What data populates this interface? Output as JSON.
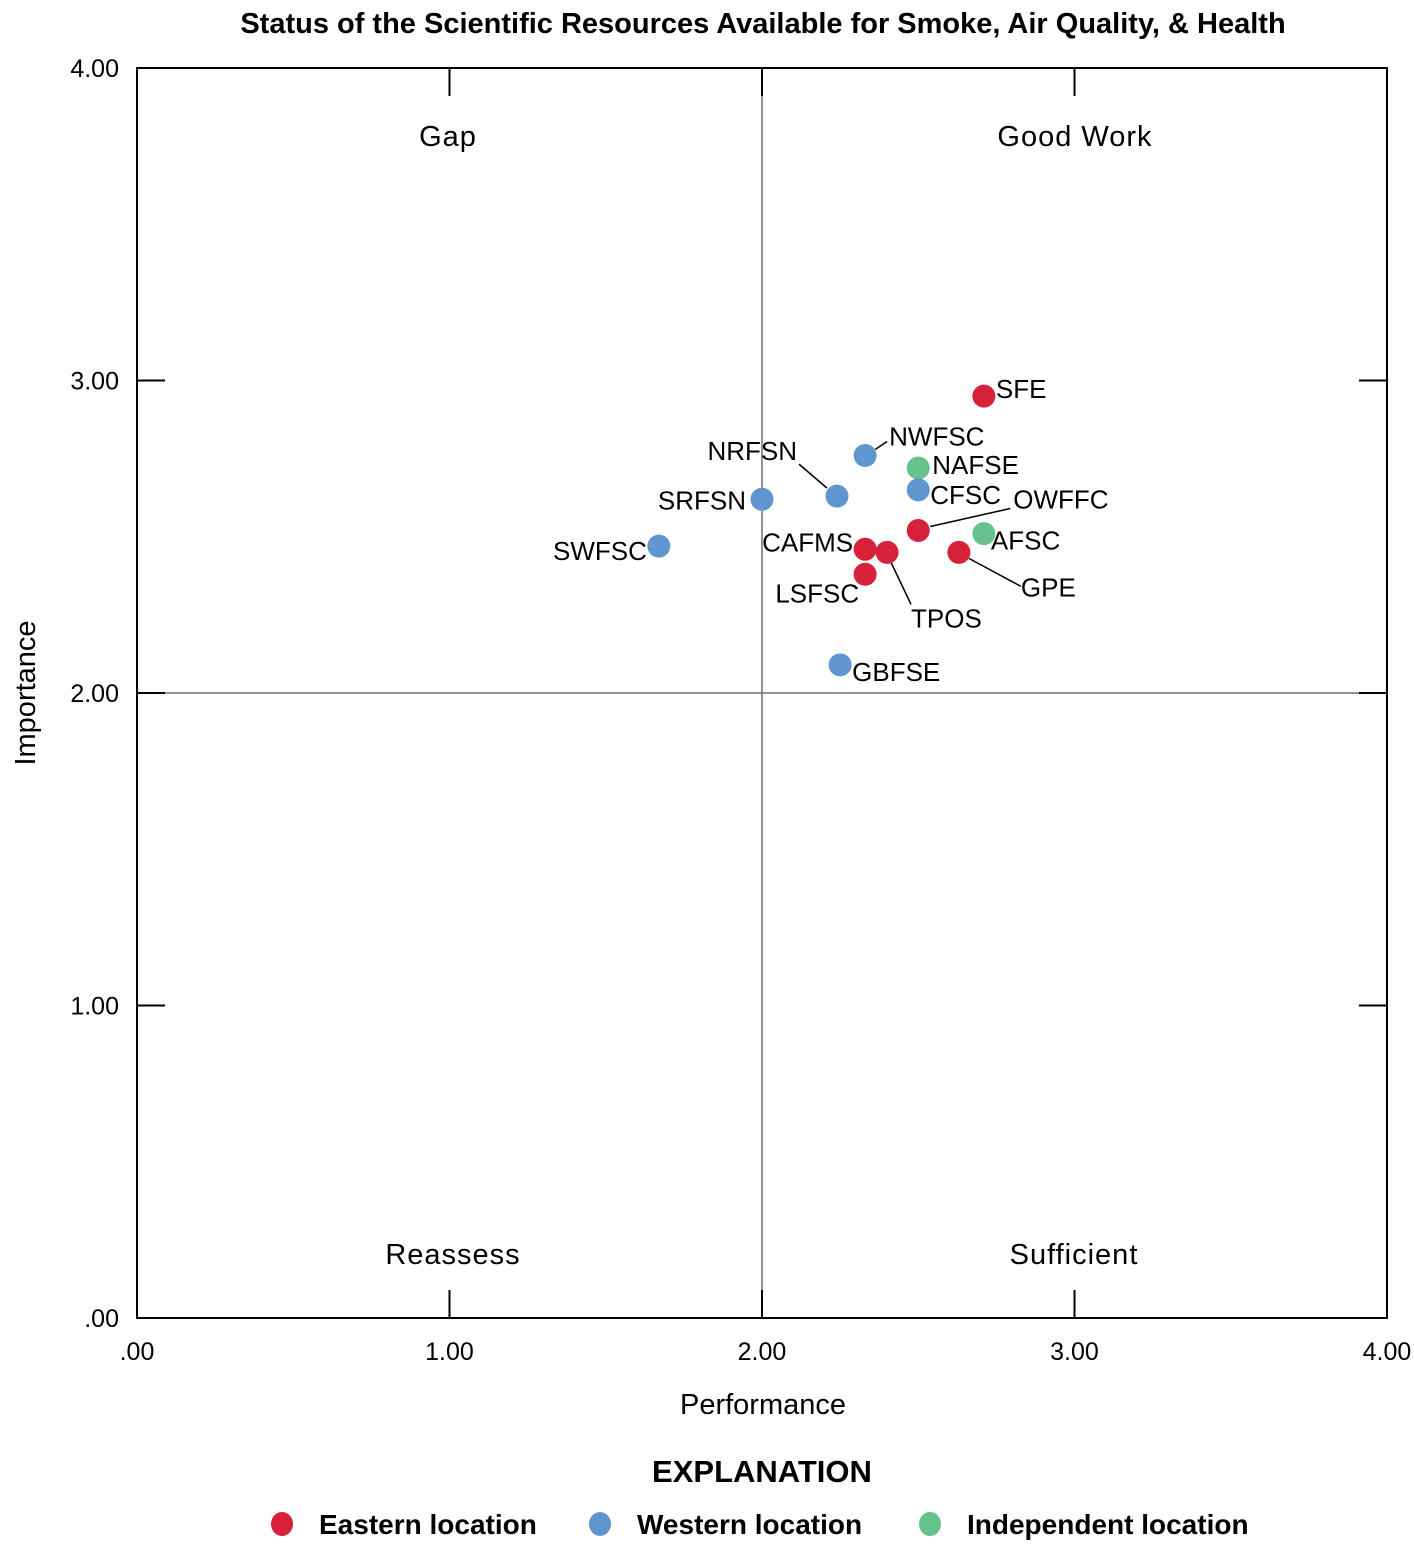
{
  "chart_data": {
    "type": "scatter",
    "title": "Status of the Scientific Resources Available for Smoke, Air Quality, & Health",
    "xlabel": "Performance",
    "ylabel": "Importance",
    "xlim": [
      0,
      4
    ],
    "ylim": [
      0,
      4
    ],
    "x_ticks": [
      ".00",
      "1.00",
      "2.00",
      "3.00",
      "4.00"
    ],
    "y_ticks": [
      ".00",
      "1.00",
      "2.00",
      "3.00",
      "4.00"
    ],
    "x_tick_values": [
      0,
      1,
      2,
      3,
      4
    ],
    "y_tick_values": [
      0,
      1,
      2,
      3,
      4
    ],
    "grid": false,
    "reference_lines": {
      "x": 2.0,
      "y": 2.0
    },
    "quadrant_labels": {
      "top_left": "Gap",
      "top_right": "Good Work",
      "bottom_left": "Reassess",
      "bottom_right": "Sufficient"
    },
    "legend": {
      "title": "EXPLANATION",
      "position": "bottom-center",
      "entries": [
        {
          "key": "eastern",
          "label": "Eastern location",
          "color": "#d7203a"
        },
        {
          "key": "western",
          "label": "Western location",
          "color": "#6096cf"
        },
        {
          "key": "independent",
          "label": "Independent location",
          "color": "#66c18b"
        }
      ]
    },
    "points": [
      {
        "label": "SFE",
        "x": 2.71,
        "y": 2.95,
        "group": "eastern"
      },
      {
        "label": "NWFSC",
        "x": 2.33,
        "y": 2.76,
        "group": "western"
      },
      {
        "label": "NAFSE",
        "x": 2.5,
        "y": 2.72,
        "group": "independent"
      },
      {
        "label": "CFSC",
        "x": 2.5,
        "y": 2.65,
        "group": "western"
      },
      {
        "label": "NRFSN",
        "x": 2.24,
        "y": 2.63,
        "group": "western"
      },
      {
        "label": "SRFSN",
        "x": 2.0,
        "y": 2.62,
        "group": "western"
      },
      {
        "label": "OWFFC",
        "x": 2.5,
        "y": 2.52,
        "group": "eastern"
      },
      {
        "label": "AFSC",
        "x": 2.71,
        "y": 2.51,
        "group": "independent"
      },
      {
        "label": "SWFSC",
        "x": 1.67,
        "y": 2.47,
        "group": "western"
      },
      {
        "label": "CAFMS",
        "x": 2.33,
        "y": 2.46,
        "group": "eastern"
      },
      {
        "label": "GPE",
        "x": 2.63,
        "y": 2.45,
        "group": "eastern"
      },
      {
        "label": "TPOS",
        "x": 2.4,
        "y": 2.45,
        "group": "eastern"
      },
      {
        "label": "LSFSC",
        "x": 2.33,
        "y": 2.38,
        "group": "eastern"
      },
      {
        "label": "GBFSE",
        "x": 2.25,
        "y": 2.09,
        "group": "western"
      }
    ]
  }
}
